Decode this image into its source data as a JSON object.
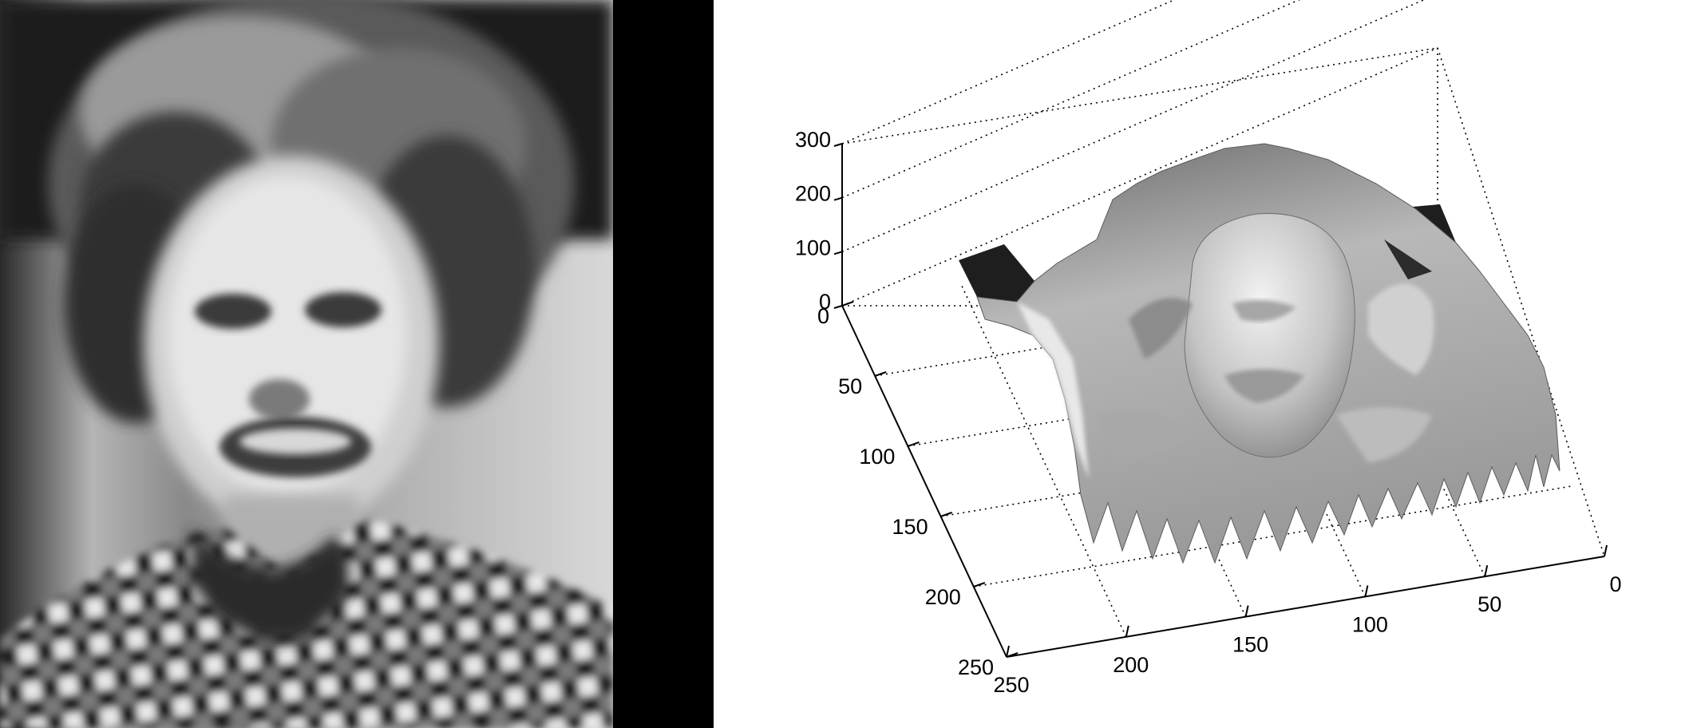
{
  "photo": {
    "subject": "blurred grayscale portrait of a smiling woman with curly hair wearing a checkered collar"
  },
  "chart_data": {
    "type": "surface",
    "title": "",
    "xlabel": "",
    "ylabel": "",
    "zlabel": "",
    "colormap": "gray",
    "grid": true,
    "box": true,
    "xlim": [
      0,
      250
    ],
    "ylim": [
      0,
      250
    ],
    "zlim": [
      0,
      300
    ],
    "x_ticks": [
      0,
      50,
      100,
      150,
      200,
      250
    ],
    "y_ticks": [
      0,
      50,
      100,
      150,
      200,
      250
    ],
    "z_ticks": [
      0,
      100,
      200,
      300
    ],
    "x_tick_labels": [
      "0",
      "50",
      "100",
      "150",
      "200",
      "250"
    ],
    "y_tick_labels": [
      "0",
      "50",
      "100",
      "150",
      "200",
      "250"
    ],
    "z_tick_labels": [
      "0",
      "100",
      "200",
      "300"
    ],
    "surface_source": "pixel intensities of the blurred portrait (0-255)"
  }
}
